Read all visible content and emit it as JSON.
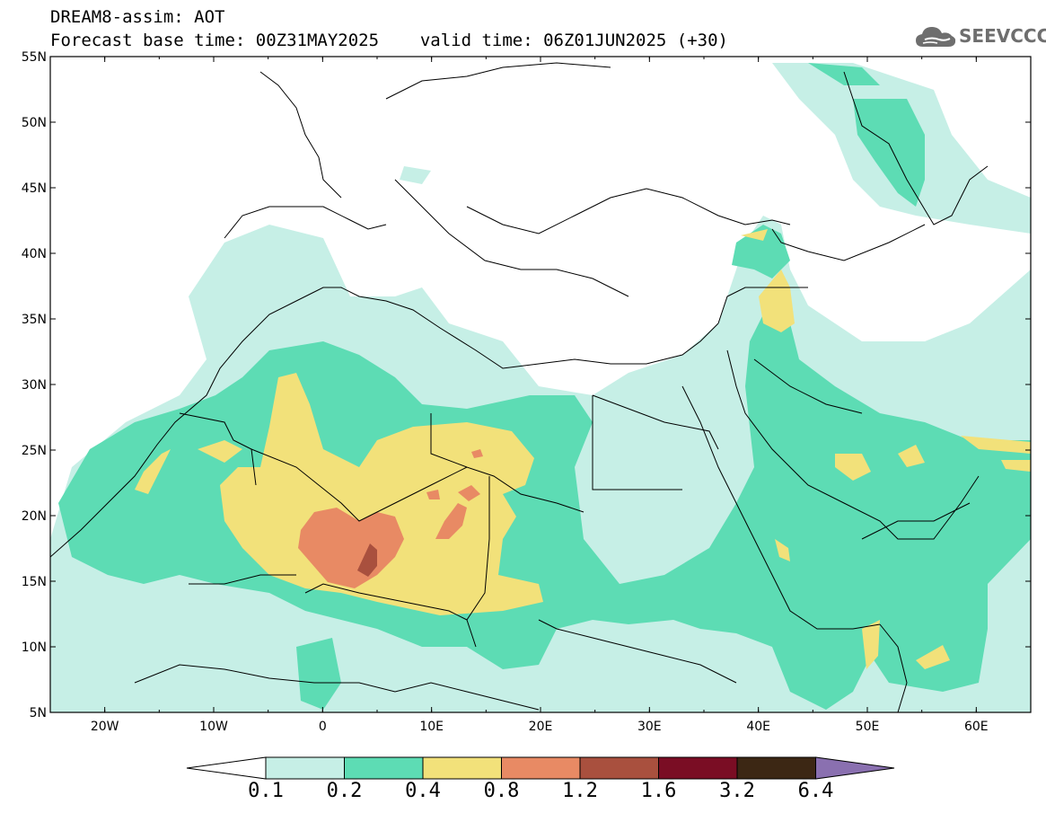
{
  "header": {
    "title": "DREAM8-assim: AOT",
    "base_time_label": "Forecast base time: 00Z31MAY2025",
    "valid_time_label": "valid time: 06Z01JUN2025 (+30)"
  },
  "logo": {
    "text": "SEEVCCC",
    "icon": "cloud-icon"
  },
  "map": {
    "lon_range": [
      -25,
      65
    ],
    "lat_range": [
      5,
      55
    ],
    "lon_ticks": [
      "20W",
      "10W",
      "0",
      "10E",
      "20E",
      "30E",
      "40E",
      "50E",
      "60E"
    ],
    "lat_ticks": [
      "55N",
      "50N",
      "45N",
      "40N",
      "35N",
      "30N",
      "25N",
      "20N",
      "15N",
      "10N",
      "5N"
    ],
    "colors": {
      "c01": "#c6efe6",
      "c02": "#5ddcb4",
      "c04": "#f2e17a",
      "c08": "#e88a64",
      "c12": "#a9503e",
      "c16": "#7a0d24",
      "c32": "#3c2714",
      "c64": "#8a70b0"
    }
  },
  "colorbar": {
    "labels": [
      "0.1",
      "0.2",
      "0.4",
      "0.8",
      "1.2",
      "1.6",
      "3.2",
      "6.4"
    ],
    "colors": [
      "#c6efe6",
      "#5ddcb4",
      "#f2e17a",
      "#e88a64",
      "#a9503e",
      "#7a0d24",
      "#3c2714"
    ],
    "over_color": "#8a70b0",
    "under_color": "#ffffff"
  }
}
